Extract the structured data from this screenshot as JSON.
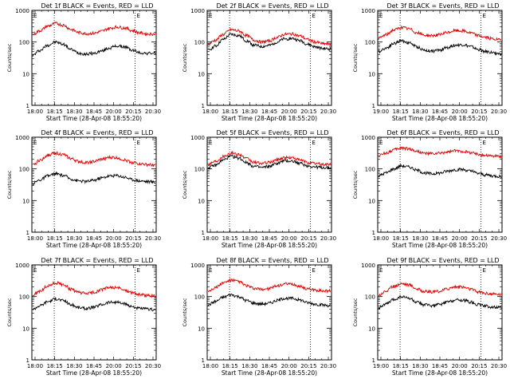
{
  "colors": {
    "background": "#ffffff",
    "events": "#000000",
    "lld": "#e00000",
    "axes": "#000000"
  },
  "chart_data": [
    {
      "type": "line",
      "title": "Det 1f BLACK = Events, RED = LLD",
      "xlabel": "Start Time (28-Apr-08 18:55:20)",
      "ylabel": "Counts/sec",
      "x_ticks": [
        "18:00",
        "18:15",
        "18:30",
        "18:45",
        "20:00",
        "20:15",
        "20:30"
      ],
      "y_ticks": [
        "1",
        "10",
        "100",
        "1000"
      ],
      "yscale": "log",
      "ylim": [
        1,
        1000
      ],
      "annotations": [
        "E",
        "E"
      ],
      "dashed_markers": [
        "18:15",
        "20:15"
      ],
      "series": [
        {
          "name": "Events",
          "color": "#000000",
          "values": [
            38,
            55,
            80,
            100,
            85,
            58,
            45,
            42,
            44,
            52,
            65,
            75,
            70,
            55,
            46,
            44,
            45
          ]
        },
        {
          "name": "LLD",
          "color": "#e00000",
          "values": [
            170,
            230,
            320,
            390,
            340,
            250,
            200,
            185,
            190,
            220,
            270,
            300,
            280,
            230,
            195,
            180,
            180
          ]
        }
      ]
    },
    {
      "type": "line",
      "title": "Det 2f BLACK = Events, RED = LLD",
      "xlabel": "Start Time (28-Apr-08 18:55:20)",
      "ylabel": "Counts/sec",
      "x_ticks": [
        "18:00",
        "18:15",
        "18:30",
        "18:45",
        "20:00",
        "20:15",
        "20:30"
      ],
      "y_ticks": [
        "1",
        "10",
        "100",
        "1000"
      ],
      "yscale": "log",
      "ylim": [
        1,
        1000
      ],
      "annotations": [
        "E",
        "E"
      ],
      "dashed_markers": [
        "18:15",
        "20:15"
      ],
      "series": [
        {
          "name": "Events",
          "color": "#000000",
          "values": [
            55,
            75,
            120,
            175,
            160,
            110,
            80,
            72,
            78,
            100,
            125,
            130,
            110,
            85,
            70,
            62,
            60
          ]
        },
        {
          "name": "LLD",
          "color": "#e00000",
          "values": [
            85,
            115,
            175,
            245,
            225,
            160,
            115,
            100,
            108,
            140,
            175,
            180,
            155,
            120,
            100,
            88,
            85
          ]
        }
      ]
    },
    {
      "type": "line",
      "title": "Det 3f BLACK = Events, RED = LLD",
      "xlabel": "Start Time (28-Apr-08 18:55:20)",
      "ylabel": "Counts/sec",
      "x_ticks": [
        "19:00",
        "18:15",
        "18:30",
        "18:45",
        "20:00",
        "20:15",
        "20:30"
      ],
      "y_ticks": [
        "1",
        "10",
        "100",
        "1000"
      ],
      "yscale": "log",
      "ylim": [
        1,
        1000
      ],
      "annotations": [
        "E",
        "E"
      ],
      "dashed_markers": [
        "18:15",
        "20:15"
      ],
      "series": [
        {
          "name": "Events",
          "color": "#000000",
          "values": [
            50,
            65,
            90,
            110,
            95,
            70,
            55,
            52,
            56,
            68,
            80,
            82,
            72,
            58,
            50,
            46,
            42
          ]
        },
        {
          "name": "LLD",
          "color": "#e00000",
          "values": [
            130,
            170,
            240,
            290,
            260,
            195,
            165,
            160,
            170,
            200,
            230,
            225,
            195,
            160,
            140,
            125,
            115
          ]
        }
      ]
    },
    {
      "type": "line",
      "title": "Det 4f BLACK = Events, RED = LLD",
      "xlabel": "Start Time (28-Apr-08 18:55:20)",
      "ylabel": "Counts/sec",
      "x_ticks": [
        "18:00",
        "18:15",
        "18:30",
        "18:45",
        "20:00",
        "20:15",
        "20:30"
      ],
      "y_ticks": [
        "1",
        "10",
        "100",
        "1000"
      ],
      "yscale": "log",
      "ylim": [
        1,
        1000
      ],
      "annotations": [
        "E",
        "E"
      ],
      "dashed_markers": [
        "18:15",
        "20:15"
      ],
      "series": [
        {
          "name": "Events",
          "color": "#000000",
          "values": [
            35,
            45,
            60,
            70,
            62,
            48,
            42,
            40,
            44,
            52,
            60,
            62,
            55,
            46,
            42,
            40,
            38
          ]
        },
        {
          "name": "LLD",
          "color": "#e00000",
          "values": [
            130,
            190,
            270,
            320,
            280,
            210,
            170,
            160,
            170,
            200,
            230,
            225,
            190,
            160,
            145,
            135,
            130
          ]
        }
      ]
    },
    {
      "type": "line",
      "title": "Det 5f BLACK = Events, RED = LLD",
      "xlabel": "Start Time (28-Apr-08 18:55:20)",
      "ylabel": "Counts/sec",
      "x_ticks": [
        "18:00",
        "18:15",
        "18:30",
        "18:45",
        "20:00",
        "20:15",
        "20:30"
      ],
      "y_ticks": [
        "1",
        "10",
        "100",
        "1000"
      ],
      "yscale": "log",
      "ylim": [
        1,
        1000
      ],
      "annotations": [
        "E",
        "E"
      ],
      "dashed_markers": [
        "18:15",
        "20:15"
      ],
      "series": [
        {
          "name": "Events",
          "color": "#000000",
          "values": [
            110,
            130,
            190,
            250,
            220,
            160,
            120,
            110,
            120,
            150,
            180,
            175,
            150,
            125,
            115,
            110,
            108
          ]
        },
        {
          "name": "LLD",
          "color": "#e00000",
          "values": [
            140,
            175,
            250,
            320,
            290,
            210,
            160,
            150,
            160,
            195,
            230,
            225,
            190,
            160,
            148,
            140,
            138
          ]
        }
      ]
    },
    {
      "type": "line",
      "title": "Det 6f BLACK = Events, RED = LLD",
      "xlabel": "Start Time (28-Apr-08 18:55:20)",
      "ylabel": "Counts/sec",
      "x_ticks": [
        "18:00",
        "18:15",
        "18:30",
        "18:45",
        "20:00",
        "20:15",
        "20:30"
      ],
      "y_ticks": [
        "1",
        "10",
        "100",
        "1000"
      ],
      "yscale": "log",
      "ylim": [
        1,
        1000
      ],
      "annotations": [
        "E",
        "E"
      ],
      "dashed_markers": [
        "18:15",
        "20:15"
      ],
      "series": [
        {
          "name": "Events",
          "color": "#000000",
          "values": [
            60,
            75,
            100,
            125,
            115,
            90,
            75,
            70,
            74,
            85,
            95,
            95,
            85,
            72,
            65,
            60,
            58
          ]
        },
        {
          "name": "LLD",
          "color": "#e00000",
          "values": [
            260,
            320,
            400,
            460,
            430,
            360,
            310,
            300,
            310,
            340,
            370,
            360,
            330,
            290,
            270,
            255,
            250
          ]
        }
      ]
    },
    {
      "type": "line",
      "title": "Det 7f BLACK = Events, RED = LLD",
      "xlabel": "Start Time (28-Apr-08 18:55:20)",
      "ylabel": "Counts/sec",
      "x_ticks": [
        "18:00",
        "18:15",
        "18:30",
        "18:45",
        "20:00",
        "20:15",
        "20:30"
      ],
      "y_ticks": [
        "1",
        "10",
        "100",
        "1000"
      ],
      "yscale": "log",
      "ylim": [
        1,
        1000
      ],
      "annotations": [
        "E",
        "E"
      ],
      "dashed_markers": [
        "18:15",
        "20:15"
      ],
      "series": [
        {
          "name": "Events",
          "color": "#000000",
          "values": [
            40,
            52,
            70,
            85,
            75,
            55,
            45,
            42,
            46,
            56,
            66,
            66,
            58,
            48,
            42,
            40,
            38
          ]
        },
        {
          "name": "LLD",
          "color": "#e00000",
          "values": [
            110,
            150,
            220,
            270,
            240,
            170,
            135,
            125,
            135,
            165,
            195,
            190,
            160,
            130,
            115,
            108,
            105
          ]
        }
      ]
    },
    {
      "type": "line",
      "title": "Det 8f BLACK = Events, RED = LLD",
      "xlabel": "Start Time (28-Apr-08 18:55:20)",
      "ylabel": "Counts/sec",
      "x_ticks": [
        "18:00",
        "18:15",
        "18:30",
        "18:45",
        "20:00",
        "20:15",
        "20:30"
      ],
      "y_ticks": [
        "1",
        "10",
        "100",
        "1000"
      ],
      "yscale": "log",
      "ylim": [
        1,
        1000
      ],
      "annotations": [
        "E",
        "E"
      ],
      "dashed_markers": [
        "18:15",
        "20:15"
      ],
      "series": [
        {
          "name": "Events",
          "color": "#000000",
          "values": [
            55,
            70,
            95,
            115,
            100,
            75,
            62,
            58,
            62,
            75,
            88,
            88,
            78,
            64,
            58,
            54,
            52
          ]
        },
        {
          "name": "LLD",
          "color": "#e00000",
          "values": [
            150,
            195,
            270,
            330,
            300,
            220,
            180,
            170,
            180,
            215,
            250,
            245,
            210,
            175,
            160,
            152,
            150
          ]
        }
      ]
    },
    {
      "type": "line",
      "title": "Det 9f BLACK = Events, RED = LLD",
      "xlabel": "Start Time (28-Apr-08 18:55:20)",
      "ylabel": "Counts/sec",
      "x_ticks": [
        "19:00",
        "18:15",
        "18:30",
        "18:45",
        "20:00",
        "20:15",
        "20:30"
      ],
      "y_ticks": [
        "1",
        "10",
        "100",
        "1000"
      ],
      "yscale": "log",
      "ylim": [
        1,
        1000
      ],
      "annotations": [
        "E",
        "E"
      ],
      "dashed_markers": [
        "18:15",
        "20:15"
      ],
      "series": [
        {
          "name": "Events",
          "color": "#000000",
          "values": [
            45,
            58,
            80,
            100,
            88,
            65,
            55,
            52,
            56,
            68,
            78,
            78,
            68,
            56,
            50,
            46,
            44
          ]
        },
        {
          "name": "LLD",
          "color": "#e00000",
          "values": [
            110,
            150,
            210,
            260,
            235,
            175,
            145,
            140,
            148,
            178,
            205,
            200,
            172,
            142,
            128,
            120,
            118
          ]
        }
      ]
    }
  ]
}
